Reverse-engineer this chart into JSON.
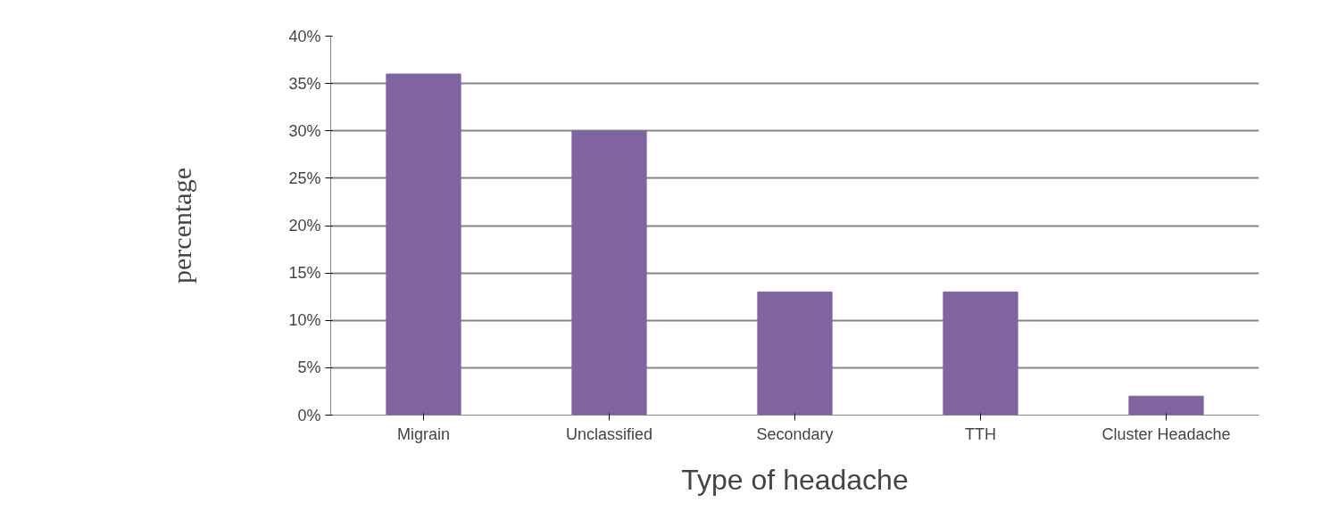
{
  "chart_data": {
    "type": "bar",
    "xlabel": "Type of headache",
    "ylabel": "percentage",
    "categories": [
      "Migrain",
      "Unclassified",
      "Secondary",
      "TTH",
      "Cluster Headache"
    ],
    "values": [
      36,
      30,
      13,
      13,
      2
    ],
    "color": "#8064a2",
    "ylim": [
      0,
      40
    ],
    "yticks": [
      {
        "value": 0,
        "label": "0%"
      },
      {
        "value": 5,
        "label": "5%"
      },
      {
        "value": 10,
        "label": "10%"
      },
      {
        "value": 15,
        "label": "15%"
      },
      {
        "value": 20,
        "label": "20%"
      },
      {
        "value": 25,
        "label": "25%"
      },
      {
        "value": 30,
        "label": "30%"
      },
      {
        "value": 35,
        "label": "35%"
      },
      {
        "value": 40,
        "label": "40%"
      }
    ],
    "grid": "y"
  }
}
